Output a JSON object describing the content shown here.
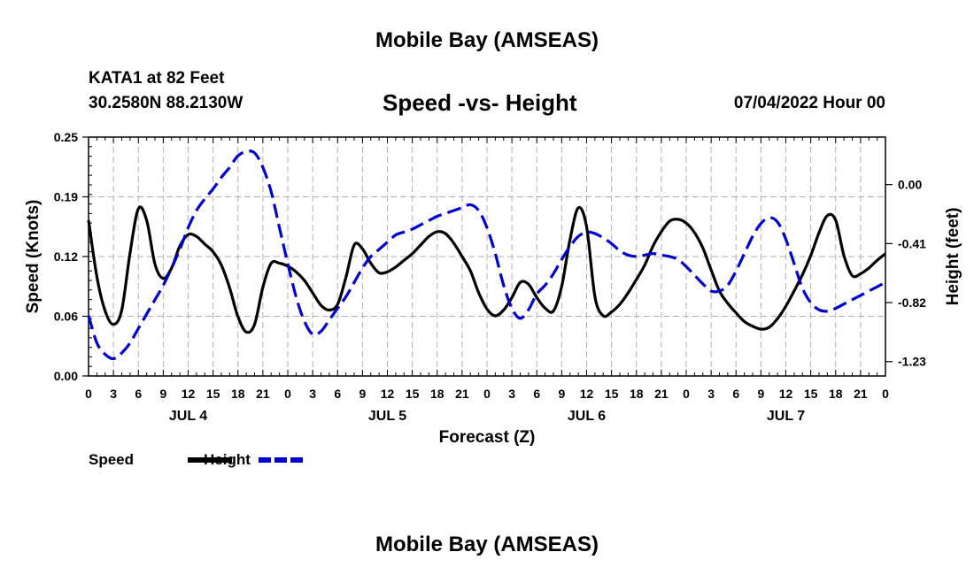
{
  "header": {
    "title": "Mobile Bay (AMSEAS)",
    "station": "KATA1 at 82 Feet",
    "coords": "30.2580N  88.2130W",
    "subtitle": "Speed -vs- Height",
    "datetime": "07/04/2022 Hour 00"
  },
  "footer": {
    "title": "Mobile Bay (AMSEAS)"
  },
  "chart_data": {
    "type": "line",
    "title": "Speed -vs- Height",
    "xlabel": "Forecast (Z)",
    "ylabel": "Speed (Knots)",
    "y2label": "Height (feet)",
    "xlim": [
      0,
      96
    ],
    "ylim": [
      0,
      0.25
    ],
    "y2lim": [
      -1.33,
      0.33
    ],
    "x_tick_labels": [
      "0",
      "3",
      "6",
      "9",
      "12",
      "15",
      "18",
      "21",
      "0",
      "3",
      "6",
      "9",
      "12",
      "15",
      "18",
      "21",
      "0",
      "3",
      "6",
      "9",
      "12",
      "15",
      "18",
      "21",
      "0",
      "3",
      "6",
      "9",
      "12",
      "15",
      "18",
      "21",
      "0"
    ],
    "day_labels": [
      {
        "label": "JUL 4",
        "hour": 12
      },
      {
        "label": "JUL 5",
        "hour": 36
      },
      {
        "label": "JUL 6",
        "hour": 60
      },
      {
        "label": "JUL 7",
        "hour": 84
      }
    ],
    "y_ticks": [
      "0.00",
      "0.06",
      "0.12",
      "0.19",
      "0.25"
    ],
    "y_tick_values": [
      0,
      0.0625,
      0.125,
      0.1875,
      0.25
    ],
    "y2_ticks": [
      "0.00",
      "-0.41",
      "-0.82",
      "-1.23"
    ],
    "y2_tick_values": [
      0,
      -0.41,
      -0.82,
      -1.23
    ],
    "legend": [
      {
        "name": "Speed",
        "color": "#000000",
        "dash": false
      },
      {
        "name": "Height",
        "color": "#0000cc",
        "dash": true
      }
    ],
    "series": [
      {
        "name": "Speed",
        "axis": "left",
        "color": "#000000",
        "dash": false,
        "x": [
          0,
          1,
          2,
          3,
          4,
          5,
          6,
          7,
          8,
          9,
          10,
          11,
          12,
          13,
          14,
          15,
          16,
          17,
          18,
          19,
          20,
          21,
          22,
          23,
          24,
          25,
          26,
          27,
          28,
          29,
          30,
          31,
          32,
          33,
          34,
          35,
          36,
          37,
          38,
          39,
          40,
          41,
          42,
          43,
          44,
          45,
          46,
          47,
          48,
          49,
          50,
          51,
          52,
          53,
          54,
          55,
          56,
          57,
          58,
          59,
          60,
          61,
          62,
          63,
          64,
          65,
          66,
          67,
          68,
          69,
          70,
          71,
          72,
          73,
          74,
          75,
          76,
          77,
          78,
          79,
          80,
          81,
          82,
          83,
          84,
          85,
          86,
          87,
          88,
          89,
          90,
          91,
          92,
          93,
          94,
          95,
          96
        ],
        "values": [
          0.163,
          0.104,
          0.068,
          0.054,
          0.069,
          0.129,
          0.175,
          0.163,
          0.117,
          0.102,
          0.113,
          0.136,
          0.148,
          0.146,
          0.138,
          0.13,
          0.116,
          0.092,
          0.062,
          0.046,
          0.054,
          0.093,
          0.118,
          0.118,
          0.115,
          0.109,
          0.1,
          0.087,
          0.074,
          0.069,
          0.075,
          0.103,
          0.137,
          0.133,
          0.118,
          0.108,
          0.109,
          0.114,
          0.121,
          0.128,
          0.137,
          0.146,
          0.151,
          0.149,
          0.139,
          0.125,
          0.11,
          0.087,
          0.07,
          0.063,
          0.069,
          0.082,
          0.098,
          0.096,
          0.082,
          0.071,
          0.068,
          0.094,
          0.143,
          0.176,
          0.156,
          0.083,
          0.063,
          0.067,
          0.075,
          0.087,
          0.101,
          0.116,
          0.136,
          0.151,
          0.162,
          0.164,
          0.16,
          0.15,
          0.134,
          0.111,
          0.089,
          0.076,
          0.066,
          0.057,
          0.052,
          0.049,
          0.051,
          0.06,
          0.073,
          0.089,
          0.106,
          0.126,
          0.15,
          0.168,
          0.163,
          0.126,
          0.105,
          0.107,
          0.113,
          0.121,
          0.128
        ]
      },
      {
        "name": "Height",
        "axis": "right",
        "color": "#0000cc",
        "dash": true,
        "x": [
          0,
          1,
          2,
          3,
          4,
          5,
          6,
          7,
          8,
          9,
          10,
          11,
          12,
          13,
          14,
          15,
          16,
          17,
          18,
          19,
          20,
          21,
          22,
          23,
          24,
          25,
          26,
          27,
          28,
          29,
          30,
          31,
          32,
          33,
          34,
          35,
          36,
          37,
          38,
          39,
          40,
          41,
          42,
          43,
          44,
          45,
          46,
          47,
          48,
          49,
          50,
          51,
          52,
          53,
          54,
          55,
          56,
          57,
          58,
          59,
          60,
          61,
          62,
          63,
          64,
          65,
          66,
          67,
          68,
          69,
          70,
          71,
          72,
          73,
          74,
          75,
          76,
          77,
          78,
          79,
          80,
          81,
          82,
          83,
          84,
          85,
          86,
          87,
          88,
          89,
          90,
          91,
          92,
          93,
          94,
          95,
          96
        ],
        "values": [
          -0.91,
          -1.1,
          -1.18,
          -1.21,
          -1.17,
          -1.1,
          -1.0,
          -0.9,
          -0.8,
          -0.7,
          -0.58,
          -0.45,
          -0.3,
          -0.18,
          -0.1,
          -0.03,
          0.05,
          0.12,
          0.2,
          0.23,
          0.22,
          0.12,
          -0.05,
          -0.3,
          -0.55,
          -0.78,
          -0.95,
          -1.04,
          -1.02,
          -0.94,
          -0.86,
          -0.78,
          -0.68,
          -0.58,
          -0.5,
          -0.45,
          -0.4,
          -0.35,
          -0.33,
          -0.31,
          -0.28,
          -0.25,
          -0.22,
          -0.2,
          -0.18,
          -0.16,
          -0.14,
          -0.18,
          -0.3,
          -0.48,
          -0.7,
          -0.86,
          -0.93,
          -0.87,
          -0.76,
          -0.7,
          -0.62,
          -0.52,
          -0.43,
          -0.36,
          -0.33,
          -0.34,
          -0.37,
          -0.41,
          -0.46,
          -0.49,
          -0.5,
          -0.49,
          -0.48,
          -0.49,
          -0.5,
          -0.52,
          -0.57,
          -0.63,
          -0.69,
          -0.74,
          -0.74,
          -0.7,
          -0.6,
          -0.48,
          -0.36,
          -0.27,
          -0.23,
          -0.26,
          -0.38,
          -0.55,
          -0.72,
          -0.82,
          -0.87,
          -0.88,
          -0.86,
          -0.83,
          -0.8,
          -0.77,
          -0.74,
          -0.71,
          -0.68
        ]
      }
    ]
  }
}
